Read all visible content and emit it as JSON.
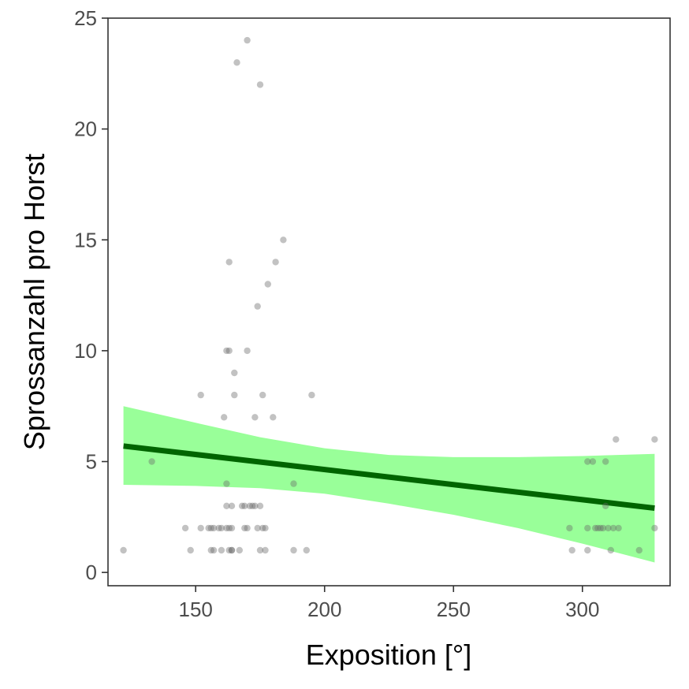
{
  "chart_data": {
    "type": "scatter",
    "xlabel": "Exposition [°]",
    "ylabel": "Sprossanzahl pro Horst",
    "xlim": [
      116,
      334
    ],
    "ylim": [
      -0.6,
      25
    ],
    "x_ticks": [
      150,
      200,
      250,
      300
    ],
    "y_ticks": [
      0,
      5,
      10,
      15,
      20,
      25
    ],
    "grid": false,
    "points": [
      [
        122,
        1
      ],
      [
        133,
        5
      ],
      [
        146,
        2
      ],
      [
        148,
        1
      ],
      [
        152,
        8
      ],
      [
        152,
        2
      ],
      [
        155,
        2
      ],
      [
        156,
        1
      ],
      [
        156,
        2
      ],
      [
        157,
        1
      ],
      [
        157,
        2
      ],
      [
        159,
        2
      ],
      [
        160,
        1
      ],
      [
        160,
        2
      ],
      [
        161,
        7
      ],
      [
        162,
        2
      ],
      [
        162,
        4
      ],
      [
        162,
        3
      ],
      [
        162,
        10
      ],
      [
        163,
        10
      ],
      [
        163,
        1
      ],
      [
        163,
        2
      ],
      [
        163,
        14
      ],
      [
        164,
        1
      ],
      [
        164,
        3
      ],
      [
        164,
        2
      ],
      [
        164,
        1
      ],
      [
        165,
        9
      ],
      [
        165,
        8
      ],
      [
        166,
        23
      ],
      [
        167,
        1
      ],
      [
        168,
        3
      ],
      [
        169,
        3
      ],
      [
        169,
        2
      ],
      [
        170,
        24
      ],
      [
        170,
        10
      ],
      [
        170,
        2
      ],
      [
        171,
        3
      ],
      [
        172,
        3
      ],
      [
        173,
        3
      ],
      [
        173,
        7
      ],
      [
        174,
        12
      ],
      [
        174,
        2
      ],
      [
        175,
        22
      ],
      [
        175,
        3
      ],
      [
        175,
        1
      ],
      [
        176,
        8
      ],
      [
        176,
        2
      ],
      [
        177,
        2
      ],
      [
        177,
        1
      ],
      [
        178,
        13
      ],
      [
        180,
        7
      ],
      [
        181,
        14
      ],
      [
        184,
        15
      ],
      [
        188,
        4
      ],
      [
        188,
        1
      ],
      [
        193,
        1
      ],
      [
        195,
        8
      ],
      [
        295,
        2
      ],
      [
        296,
        1
      ],
      [
        302,
        5
      ],
      [
        302,
        2
      ],
      [
        302,
        1
      ],
      [
        304,
        5
      ],
      [
        305,
        2
      ],
      [
        306,
        2
      ],
      [
        307,
        2
      ],
      [
        308,
        2
      ],
      [
        309,
        3
      ],
      [
        309,
        5
      ],
      [
        310,
        2
      ],
      [
        311,
        1
      ],
      [
        312,
        2
      ],
      [
        313,
        6
      ],
      [
        314,
        2
      ],
      [
        322,
        1
      ],
      [
        328,
        6
      ],
      [
        328,
        2
      ]
    ],
    "fit_line": {
      "x": [
        122,
        328
      ],
      "y": [
        5.7,
        2.9
      ]
    },
    "confidence_band": {
      "x": [
        122,
        150,
        175,
        200,
        225,
        250,
        275,
        300,
        328
      ],
      "upper": [
        7.5,
        6.75,
        6.1,
        5.6,
        5.3,
        5.2,
        5.2,
        5.25,
        5.35
      ],
      "lower": [
        3.95,
        3.9,
        3.8,
        3.55,
        3.1,
        2.6,
        2.0,
        1.3,
        0.45
      ]
    },
    "colors": {
      "points": "#666666",
      "fit_line": "#006400",
      "band": "#99ff99",
      "axis": "#333333"
    }
  }
}
